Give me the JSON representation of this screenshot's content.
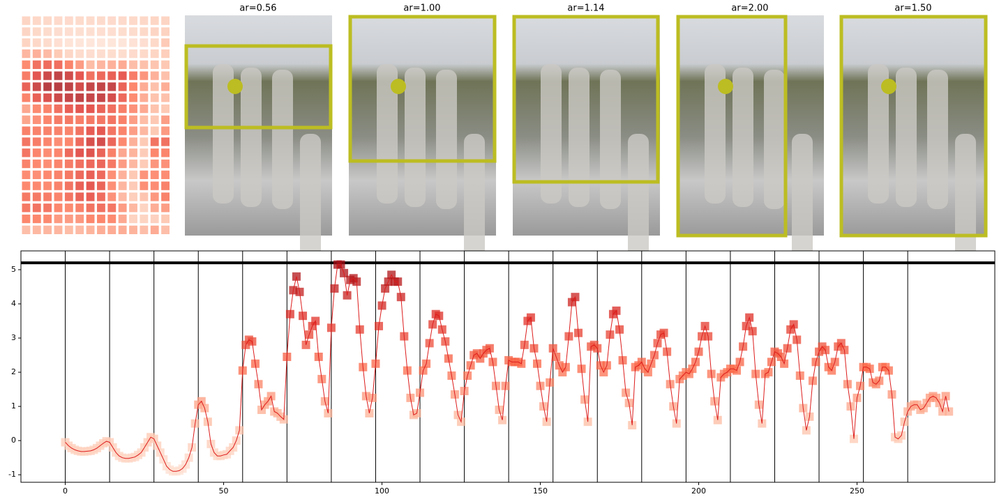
{
  "images": [
    {
      "title": "ar=0.56"
    },
    {
      "title": "ar=1.00"
    },
    {
      "title": "ar=1.14"
    },
    {
      "title": "ar=2.00"
    },
    {
      "title": "ar=1.50"
    }
  ],
  "chart_data": {
    "type": "line",
    "line_color": "#dd1c1c",
    "colormap": [
      "#fee0d2",
      "#fcbba1",
      "#fb6a4a",
      "#de2d26",
      "#a50f15"
    ],
    "xlim": [
      -14,
      293.5
    ],
    "ylim": [
      -1.22,
      5.55
    ],
    "xticks": [
      0,
      50,
      100,
      150,
      200,
      250
    ],
    "yticks": [
      -1,
      0,
      1,
      2,
      3,
      4,
      5
    ],
    "vlines": [
      0,
      14,
      28,
      42,
      56,
      70,
      84,
      98,
      112,
      126,
      140,
      154,
      168,
      182,
      196,
      210,
      224,
      238,
      252,
      266
    ],
    "hline": 5.2,
    "x": [
      0,
      1,
      2,
      3,
      4,
      5,
      6,
      7,
      8,
      9,
      10,
      11,
      12,
      13,
      14,
      15,
      16,
      17,
      18,
      19,
      20,
      21,
      22,
      23,
      24,
      25,
      26,
      27,
      28,
      29,
      30,
      31,
      32,
      33,
      34,
      35,
      36,
      37,
      38,
      39,
      40,
      41,
      42,
      43,
      44,
      45,
      46,
      47,
      48,
      49,
      50,
      51,
      52,
      53,
      54,
      55,
      56,
      57,
      58,
      59,
      60,
      61,
      62,
      63,
      64,
      65,
      66,
      67,
      68,
      69,
      70,
      71,
      72,
      73,
      74,
      75,
      76,
      77,
      78,
      79,
      80,
      81,
      82,
      83,
      84,
      85,
      86,
      87,
      88,
      89,
      90,
      91,
      92,
      93,
      94,
      95,
      96,
      97,
      98,
      99,
      100,
      101,
      102,
      103,
      104,
      105,
      106,
      107,
      108,
      109,
      110,
      111,
      112,
      113,
      114,
      115,
      116,
      117,
      118,
      119,
      120,
      121,
      122,
      123,
      124,
      125,
      126,
      127,
      128,
      129,
      130,
      131,
      132,
      133,
      134,
      135,
      136,
      137,
      138,
      139,
      140,
      141,
      142,
      143,
      144,
      145,
      146,
      147,
      148,
      149,
      150,
      151,
      152,
      153,
      154,
      155,
      156,
      157,
      158,
      159,
      160,
      161,
      162,
      163,
      164,
      165,
      166,
      167,
      168,
      169,
      170,
      171,
      172,
      173,
      174,
      175,
      176,
      177,
      178,
      179,
      180,
      181,
      182,
      183,
      184,
      185,
      186,
      187,
      188,
      189,
      190,
      191,
      192,
      193,
      194,
      195,
      196,
      197,
      198,
      199,
      200,
      201,
      202,
      203,
      204,
      205,
      206,
      207,
      208,
      209,
      210,
      211,
      212,
      213,
      214,
      215,
      216,
      217,
      218,
      219,
      220,
      221,
      222,
      223,
      224,
      225,
      226,
      227,
      228,
      229,
      230,
      231,
      232,
      233,
      234,
      235,
      236,
      237,
      238,
      239,
      240,
      241,
      242,
      243,
      244,
      245,
      246,
      247,
      248,
      249,
      250,
      251,
      252,
      253,
      254,
      255,
      256,
      257,
      258,
      259,
      260,
      261,
      262,
      263,
      264,
      265,
      266,
      267,
      268,
      269,
      270,
      271,
      272,
      273,
      274,
      275,
      276,
      277,
      278,
      279
    ],
    "values": [
      -0.05,
      -0.15,
      -0.22,
      -0.27,
      -0.3,
      -0.32,
      -0.32,
      -0.31,
      -0.3,
      -0.27,
      -0.22,
      -0.15,
      -0.08,
      -0.02,
      -0.05,
      -0.2,
      -0.35,
      -0.45,
      -0.5,
      -0.52,
      -0.52,
      -0.5,
      -0.48,
      -0.42,
      -0.35,
      -0.2,
      -0.05,
      0.1,
      0.05,
      -0.15,
      -0.35,
      -0.55,
      -0.75,
      -0.85,
      -0.9,
      -0.9,
      -0.88,
      -0.82,
      -0.7,
      -0.5,
      -0.2,
      0.5,
      1.05,
      1.15,
      0.95,
      0.55,
      -0.1,
      -0.35,
      -0.45,
      -0.45,
      -0.42,
      -0.4,
      -0.3,
      -0.2,
      0.0,
      0.3,
      2.05,
      2.8,
      2.95,
      2.9,
      2.25,
      1.65,
      0.9,
      1.05,
      1.15,
      1.3,
      0.85,
      0.8,
      0.7,
      0.62,
      2.45,
      3.7,
      4.4,
      4.8,
      4.35,
      3.65,
      2.8,
      3.1,
      3.35,
      3.5,
      2.45,
      1.8,
      1.15,
      0.8,
      3.3,
      4.45,
      5.15,
      5.15,
      4.9,
      4.25,
      4.7,
      4.75,
      4.65,
      3.25,
      2.15,
      1.3,
      0.8,
      1.25,
      2.25,
      3.35,
      3.95,
      4.45,
      4.65,
      4.85,
      4.65,
      4.65,
      4.2,
      3.05,
      2.05,
      1.25,
      0.75,
      0.8,
      1.4,
      2.05,
      2.25,
      2.85,
      3.4,
      3.7,
      3.65,
      3.25,
      2.9,
      2.4,
      1.9,
      1.35,
      0.75,
      0.55,
      1.45,
      1.9,
      2.2,
      2.5,
      2.55,
      2.4,
      2.55,
      2.65,
      2.7,
      2.3,
      1.6,
      0.9,
      0.6,
      1.6,
      2.35,
      2.3,
      2.3,
      2.3,
      2.25,
      2.8,
      3.5,
      3.6,
      2.7,
      2.25,
      1.6,
      1.0,
      0.55,
      1.7,
      2.7,
      2.45,
      2.2,
      2.0,
      2.15,
      3.05,
      4.05,
      4.2,
      3.15,
      2.1,
      1.2,
      0.55,
      2.75,
      2.8,
      2.7,
      2.2,
      2.0,
      2.2,
      3.1,
      3.7,
      3.8,
      3.25,
      2.35,
      1.4,
      1.1,
      0.45,
      2.15,
      2.2,
      2.3,
      2.1,
      2.0,
      2.25,
      2.5,
      2.85,
      3.1,
      3.15,
      2.6,
      1.65,
      1.0,
      0.5,
      1.8,
      1.9,
      2.0,
      1.95,
      2.1,
      2.3,
      2.6,
      3.05,
      3.35,
      3.05,
      1.95,
      1.15,
      0.6,
      1.85,
      1.95,
      2.0,
      2.1,
      2.1,
      2.05,
      2.3,
      2.75,
      3.35,
      3.6,
      3.2,
      1.95,
      1.05,
      0.5,
      1.95,
      2.0,
      2.3,
      2.6,
      2.55,
      2.45,
      2.25,
      2.7,
      3.25,
      3.4,
      2.95,
      1.9,
      0.95,
      0.3,
      0.7,
      1.75,
      2.3,
      2.6,
      2.75,
      2.65,
      2.15,
      2.05,
      2.3,
      2.75,
      2.85,
      2.65,
      1.65,
      1.0,
      0.05,
      1.25,
      1.6,
      2.15,
      2.15,
      2.1,
      1.7,
      1.65,
      1.75,
      2.15,
      2.15,
      2.05,
      1.35,
      0.1,
      0.05,
      0.15,
      0.55,
      0.85,
      1.0,
      1.05,
      1.05,
      0.9,
      0.95,
      1.1,
      1.25,
      1.3,
      1.25,
      1.1,
      0.85,
      1.3,
      0.85
    ]
  }
}
